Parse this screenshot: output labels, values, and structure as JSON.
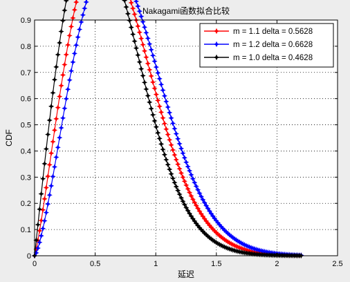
{
  "chart_data": {
    "type": "line",
    "title": "Nakagami函数拟合比较",
    "xlabel": "延迟",
    "ylabel": "CDF",
    "xlim": [
      0,
      2.5
    ],
    "ylim": [
      0,
      0.9
    ],
    "xticks": [
      0,
      0.5,
      1,
      1.5,
      2,
      2.5
    ],
    "xtick_labels": [
      "0",
      "0.5",
      "1",
      "1.5",
      "2",
      "2.5"
    ],
    "yticks": [
      0,
      0.1,
      0.2,
      0.3,
      0.4,
      0.5,
      0.6,
      0.7,
      0.8,
      0.9
    ],
    "ytick_labels": [
      "0",
      "0.1",
      "0.2",
      "0.3",
      "0.4",
      "0.5",
      "0.6",
      "0.7",
      "0.8",
      "0.9"
    ],
    "grid": true,
    "grid_style": "dotted",
    "legend_position": "top-right",
    "marker": "star",
    "x_range": [
      0,
      2.2
    ],
    "series": [
      {
        "name": "m = 1.1 delta = 0.5628",
        "m": 1.1,
        "omega": 0.5628,
        "color": "#ff0000"
      },
      {
        "name": "m = 1.2 delta = 0.6628",
        "m": 1.2,
        "omega": 0.6628,
        "color": "#0000ff"
      },
      {
        "name": "m = 1.0 delta = 0.4628",
        "m": 1.0,
        "omega": 0.4628,
        "color": "#000000"
      }
    ]
  }
}
